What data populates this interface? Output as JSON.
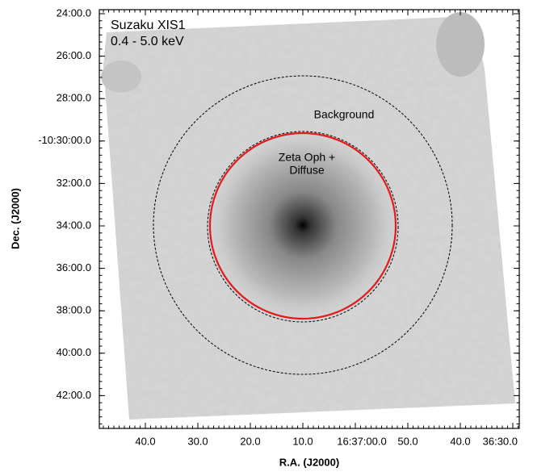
{
  "plot": {
    "legend_lines": [
      "Suzaku XIS1",
      "0.4 - 5.0 keV"
    ],
    "annotations": {
      "background": "Background",
      "source": [
        "Zeta Oph +",
        "Diffuse"
      ]
    },
    "x_axis": {
      "label": "R.A. (J2000)",
      "ticks": [
        "40.0",
        "30.0",
        "20.0",
        "10.0",
        "16:37:00.0",
        "50.0",
        "40.0",
        "36:30.0"
      ]
    },
    "y_axis": {
      "label": "Dec. (J2000)",
      "ticks": [
        "24:00.0",
        "26:00.0",
        "28:00.0",
        "-10:30:00.0",
        "32:00.0",
        "34:00.0",
        "36:00.0",
        "38:00.0",
        "40:00.0",
        "42:00.0"
      ]
    }
  }
}
